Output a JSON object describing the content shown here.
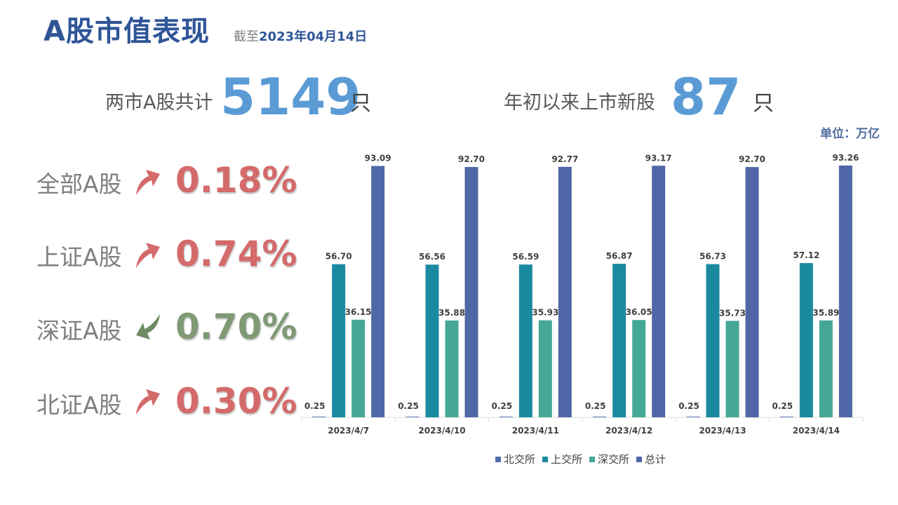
{
  "header": {
    "title": "A股市值表现",
    "asof_prefix": "截至",
    "asof_date": "2023年04月14日"
  },
  "stats": {
    "total_label": "两市A股共计",
    "total_value": "5149",
    "total_unit": "只",
    "new_label": "年初以来上市新股",
    "new_value": "87",
    "new_unit": "只"
  },
  "unit_note": "单位：万亿",
  "markets": [
    {
      "label": "全部A股",
      "value": "0.18%",
      "direction": "up",
      "icon": "arrow-up-icon"
    },
    {
      "label": "上证A股",
      "value": "0.74%",
      "direction": "up",
      "icon": "arrow-up-icon"
    },
    {
      "label": "深证A股",
      "value": "0.70%",
      "direction": "down",
      "icon": "arrow-down-icon"
    },
    {
      "label": "北证A股",
      "value": "0.30%",
      "direction": "up",
      "icon": "arrow-up-icon"
    }
  ],
  "colors": {
    "up": "#d46a6a",
    "down": "#7f9a75",
    "accent": "#5b9bd5",
    "title": "#2f5597"
  },
  "chart_data": {
    "type": "bar",
    "categories": [
      "2023/4/7",
      "2023/4/10",
      "2023/4/11",
      "2023/4/12",
      "2023/4/13",
      "2023/4/14"
    ],
    "series": [
      {
        "name": "北交所",
        "color": "#4f6fa9",
        "values": [
          0.25,
          0.25,
          0.25,
          0.25,
          0.25,
          0.25
        ]
      },
      {
        "name": "上交所",
        "color": "#1b8aa0",
        "values": [
          56.7,
          56.56,
          56.59,
          56.87,
          56.73,
          57.12
        ]
      },
      {
        "name": "深交所",
        "color": "#45a896",
        "values": [
          36.15,
          35.88,
          35.93,
          36.05,
          35.73,
          35.89
        ]
      },
      {
        "name": "总计",
        "color": "#4f67a6",
        "values": [
          93.09,
          92.7,
          92.77,
          93.17,
          92.7,
          93.26
        ]
      }
    ],
    "ylim": [
      0,
      100
    ],
    "legend_position": "bottom",
    "grid": false
  }
}
